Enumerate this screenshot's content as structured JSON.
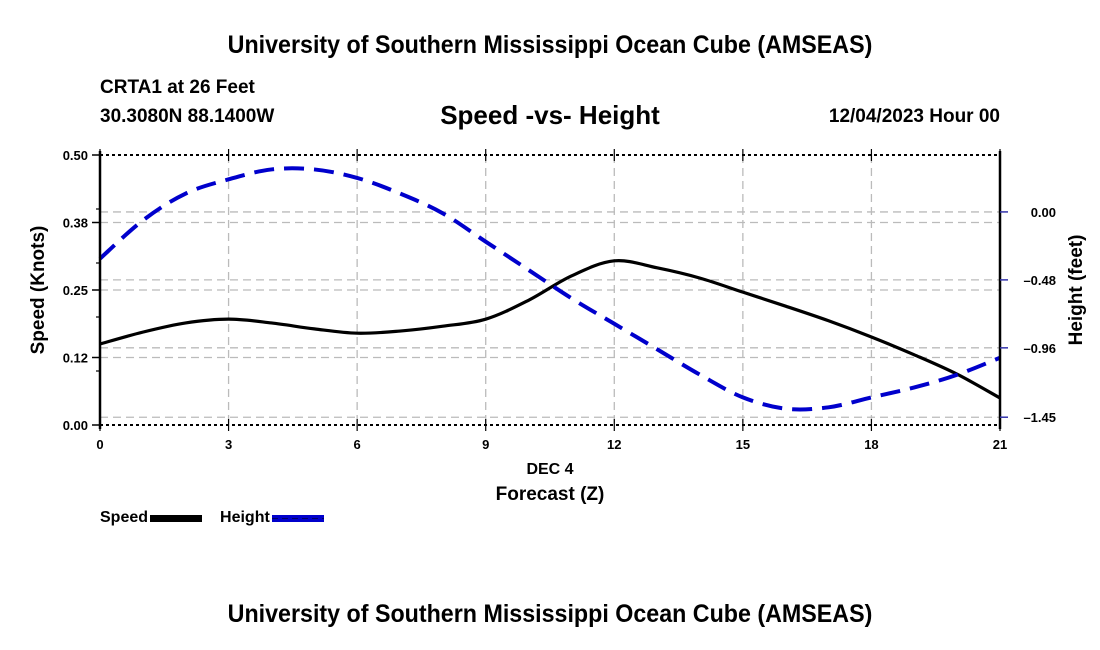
{
  "header": {
    "main_title": "University of Southern Mississippi Ocean Cube (AMSEAS)",
    "station": "CRTA1 at 26 Feet",
    "coordinates": "30.3080N  88.1400W",
    "subtitle": "Speed -vs- Height",
    "datestamp": "12/04/2023 Hour 00"
  },
  "footer": {
    "bottom_title": "University of Southern Mississippi Ocean Cube (AMSEAS)"
  },
  "legend": {
    "items": [
      {
        "label": "Speed",
        "style": "solid",
        "color": "#000000"
      },
      {
        "label": "Height",
        "style": "dashed",
        "color": "#0000cc"
      }
    ]
  },
  "chart_data": {
    "type": "line",
    "title": "Speed -vs- Height",
    "xlabel": "Forecast (Z)",
    "xsublabel": "DEC 4",
    "ylabel": "Speed (Knots)",
    "y2label": "Height (feet)",
    "x": [
      0,
      1,
      2,
      3,
      4,
      5,
      6,
      7,
      8,
      9,
      10,
      11,
      12,
      13,
      14,
      15,
      16,
      17,
      18,
      19,
      20,
      21
    ],
    "xlim": [
      0,
      21
    ],
    "xticks": [
      0,
      3,
      6,
      9,
      12,
      15,
      18,
      21
    ],
    "xtick_labels": [
      "0",
      "3",
      "6",
      "9",
      "12",
      "15",
      "18",
      "21"
    ],
    "ylim": [
      0,
      0.5
    ],
    "yticks": [
      0.0,
      0.125,
      0.25,
      0.375,
      0.5
    ],
    "ytick_labels": [
      "0.00",
      "0.12",
      "0.25",
      "0.38",
      "0.50"
    ],
    "yminor_ticks": [
      0.1,
      0.2,
      0.3,
      0.4
    ],
    "y2lim": [
      -1.505,
      0.402
    ],
    "y2ticks": [
      0.0,
      -0.48,
      -0.96,
      -1.45
    ],
    "y2tick_labels": [
      "0.00",
      "-0.48",
      "-0.96",
      "-1.45"
    ],
    "grid": true,
    "legend_position": "bottom-left",
    "series": [
      {
        "name": "Speed",
        "axis": "left",
        "color": "#000000",
        "style": "solid",
        "values": [
          0.15,
          0.172,
          0.189,
          0.196,
          0.189,
          0.178,
          0.17,
          0.174,
          0.183,
          0.196,
          0.231,
          0.276,
          0.304,
          0.291,
          0.272,
          0.246,
          0.22,
          0.193,
          0.163,
          0.13,
          0.094,
          0.05
        ]
      },
      {
        "name": "Height",
        "axis": "right",
        "color": "#0000cc",
        "style": "dashed",
        "values": [
          -0.33,
          -0.06,
          0.13,
          0.23,
          0.3,
          0.3,
          0.24,
          0.13,
          -0.01,
          -0.21,
          -0.41,
          -0.61,
          -0.79,
          -0.97,
          -1.15,
          -1.31,
          -1.39,
          -1.38,
          -1.31,
          -1.24,
          -1.15,
          -1.03
        ]
      }
    ]
  }
}
